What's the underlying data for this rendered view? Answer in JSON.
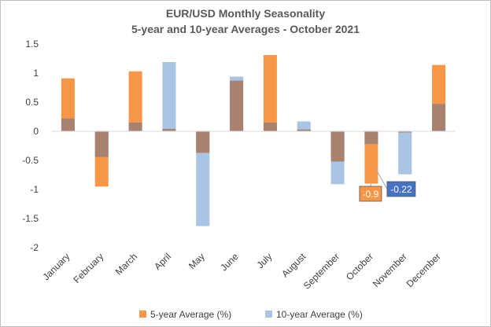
{
  "chart_data": {
    "type": "bar",
    "title": "EUR/USD Monthly Seasonality",
    "subtitle": "5-year and 10-year Averages - October 2021",
    "categories": [
      "January",
      "February",
      "March",
      "April",
      "May",
      "June",
      "July",
      "August",
      "September",
      "October",
      "November",
      "December"
    ],
    "series": [
      {
        "name": "5-year Average (%)",
        "color": "#f79646",
        "values": [
          0.91,
          -0.95,
          1.03,
          0.04,
          -0.37,
          0.87,
          1.31,
          0.03,
          -0.52,
          -0.9,
          -0.02,
          1.14
        ]
      },
      {
        "name": "10-year Average (%)",
        "color": "#a9c4e4",
        "values": [
          0.22,
          -0.44,
          0.15,
          1.19,
          -1.63,
          0.94,
          0.15,
          0.17,
          -0.91,
          -0.22,
          -0.74,
          0.47
        ]
      }
    ],
    "overlap_color": "#a9816f",
    "yticks": [
      1.5,
      1,
      0.5,
      0,
      -0.5,
      -1,
      -1.5,
      -2
    ],
    "ytick_labels": [
      "1.5",
      "1",
      "0.5",
      "0",
      "-0.5",
      "-1",
      "-1.5",
      "-2"
    ],
    "ylim": [
      -2,
      1.5
    ],
    "grid": false,
    "legend_position": "bottom",
    "annotations": [
      {
        "text": "-0.9",
        "series": 0,
        "category": "October",
        "color": "#f79646"
      },
      {
        "text": "-0.22",
        "series": 1,
        "category": "October",
        "color": "#4472c4"
      }
    ]
  }
}
